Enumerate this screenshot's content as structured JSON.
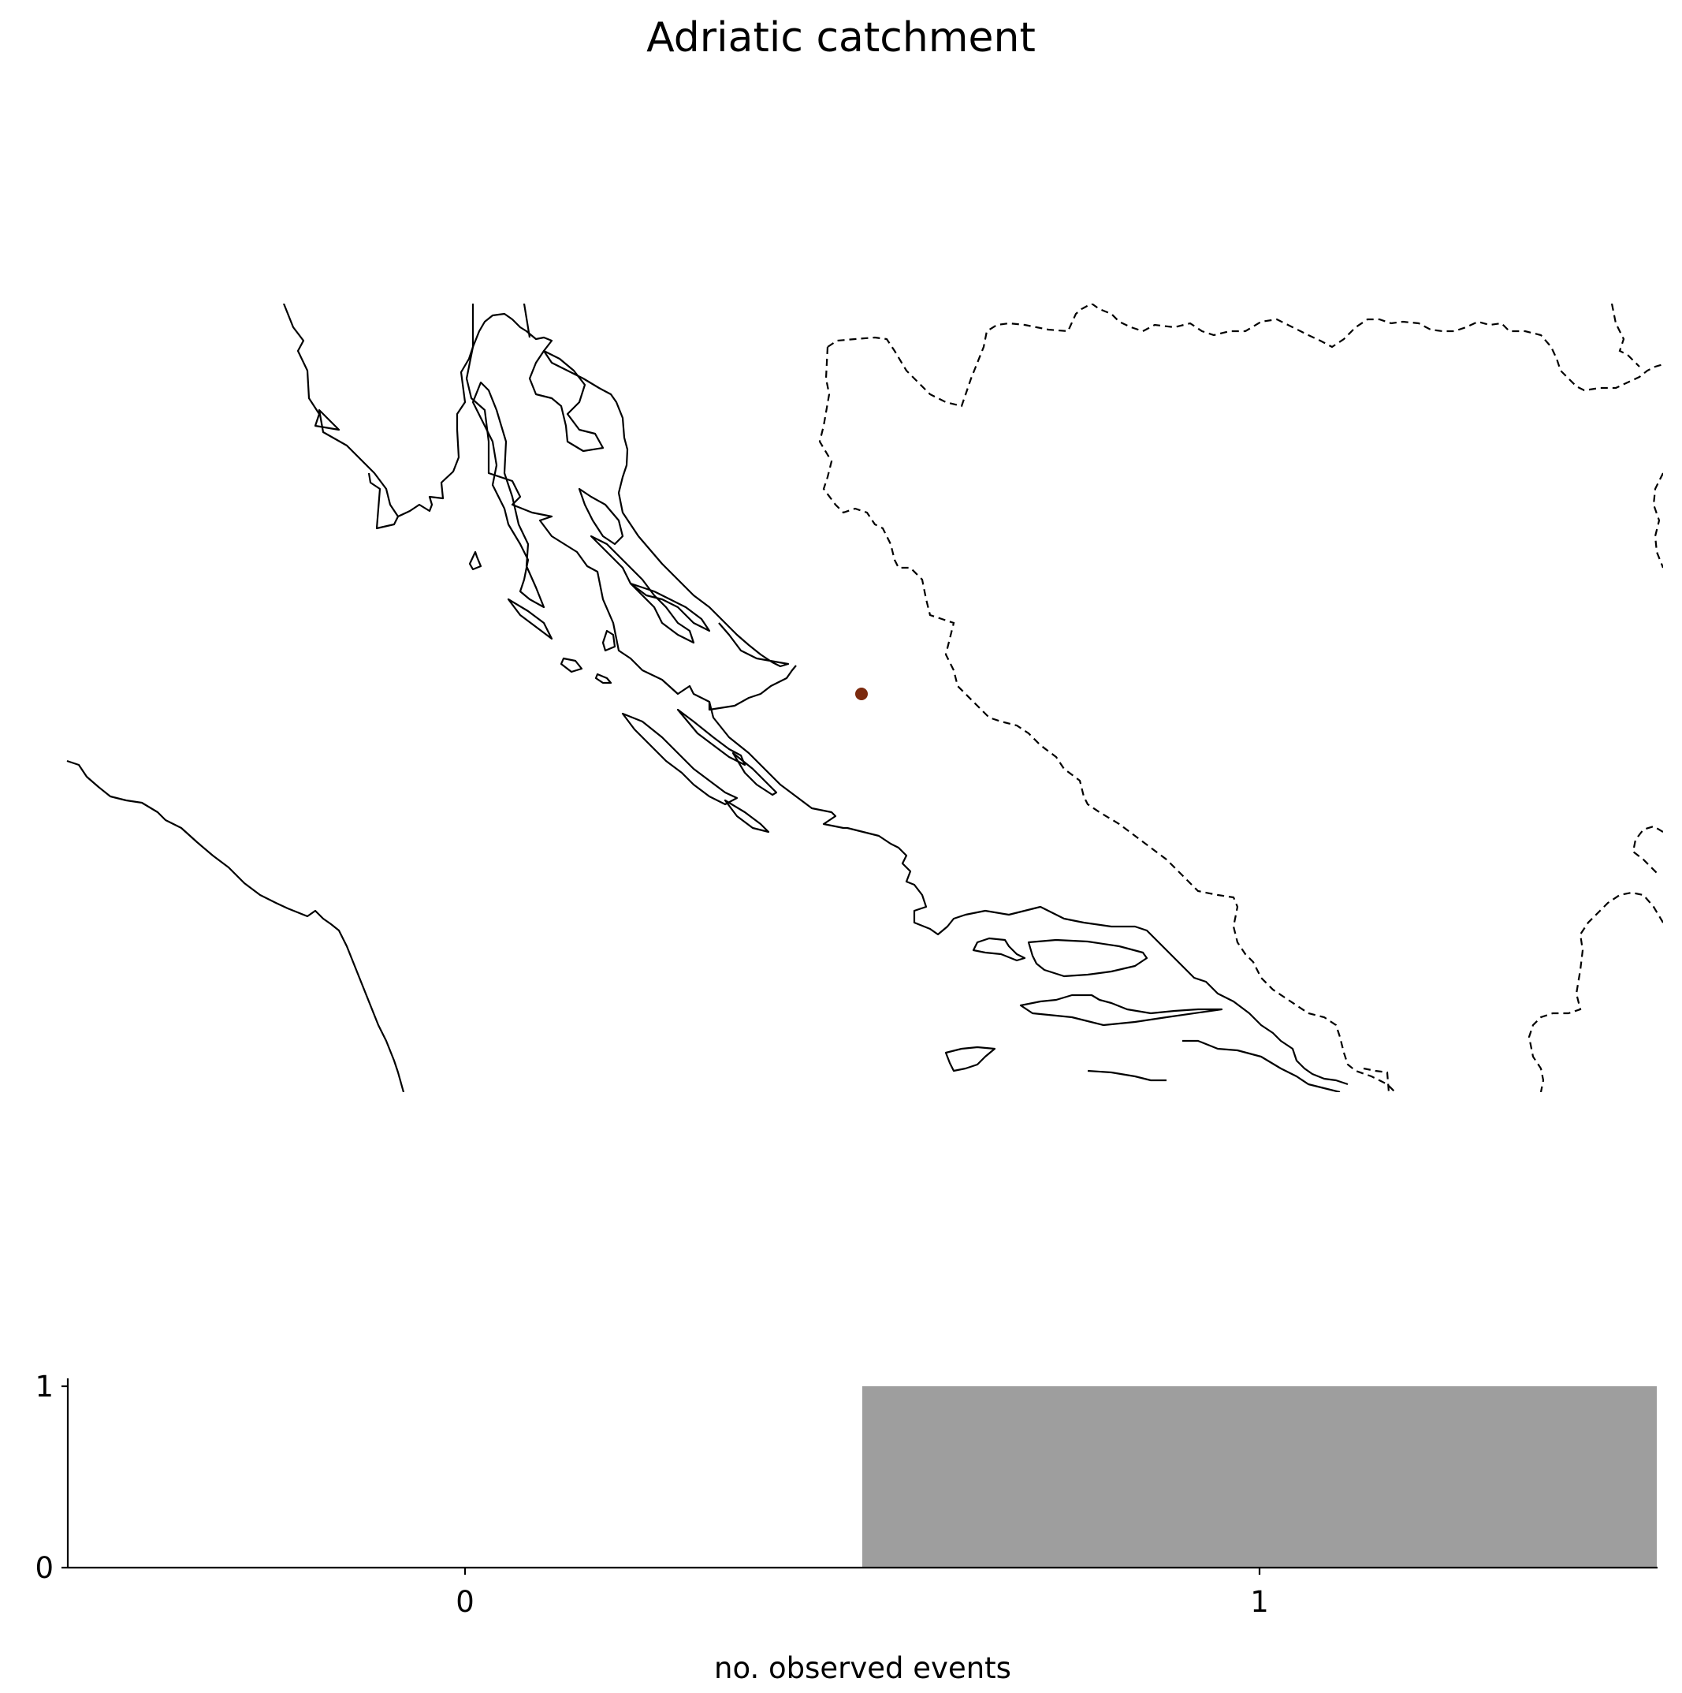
{
  "title": "Adriatic catchment",
  "map": {
    "marker_color": "#7b2a0e",
    "coast_color": "#000000",
    "border_style": "dashed"
  },
  "chart_data": {
    "type": "bar",
    "categories": [
      "0",
      "1"
    ],
    "values": [
      0,
      1
    ],
    "bar_color": "#9e9e9e",
    "xlabel": "no. observed events",
    "ylabel": "",
    "x_ticks": [
      "0",
      "1"
    ],
    "y_ticks": [
      "0",
      "1"
    ],
    "ylim": [
      0,
      1
    ]
  }
}
